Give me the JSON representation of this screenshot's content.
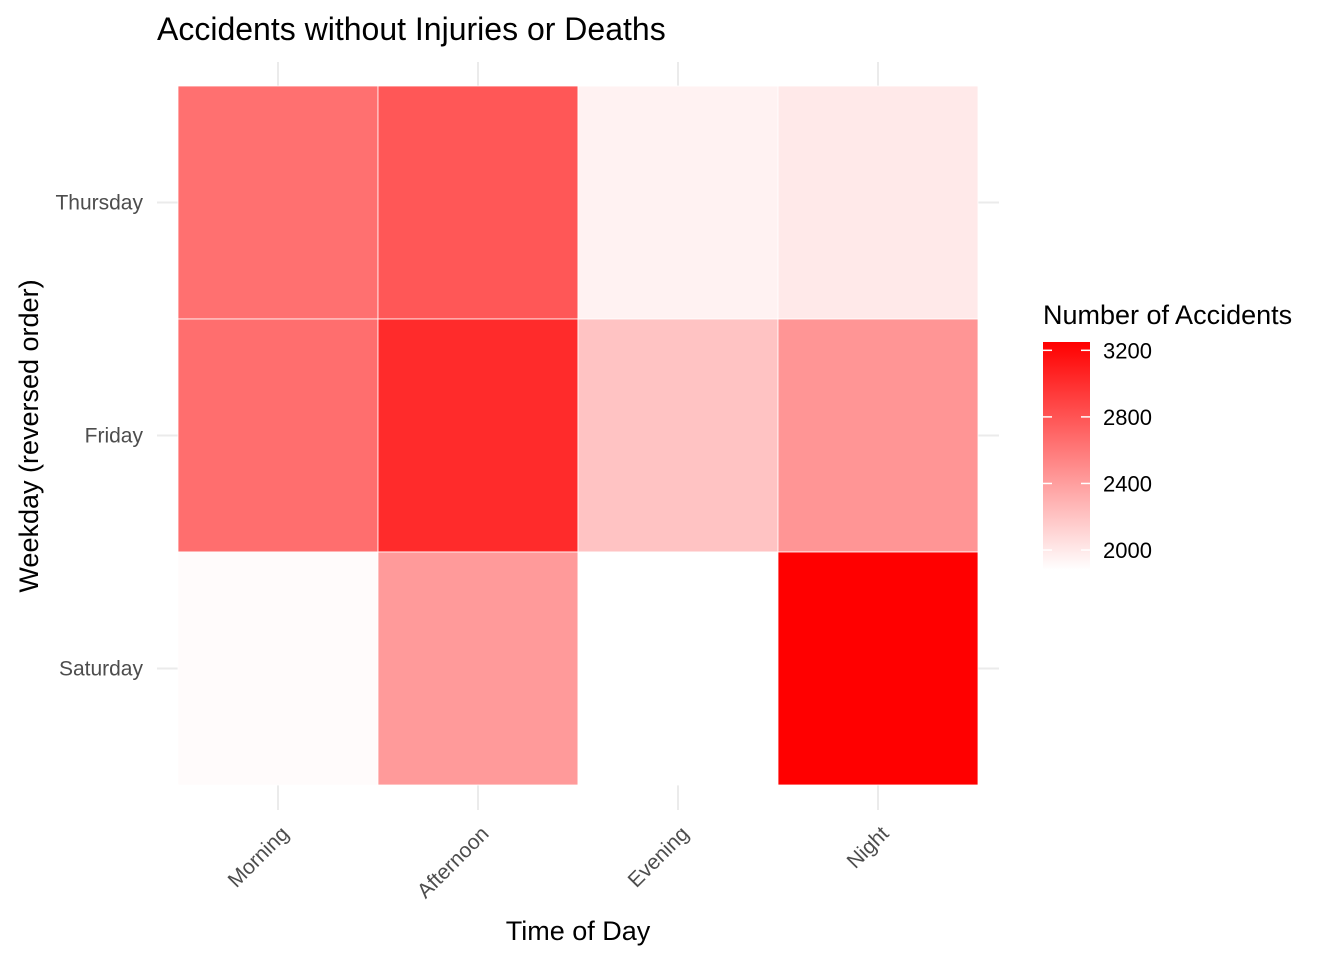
{
  "chart_data": {
    "type": "heatmap",
    "title": "Accidents without Injuries or Deaths",
    "xlabel": "Time of Day",
    "ylabel": "Weekday (reversed order)",
    "x_categories": [
      "Morning",
      "Afternoon",
      "Evening",
      "Night"
    ],
    "y_categories": [
      "Thursday",
      "Friday",
      "Saturday"
    ],
    "values": [
      [
        2650,
        2780,
        1950,
        2000
      ],
      [
        2660,
        3020,
        2200,
        2450
      ],
      [
        1900,
        2420,
        1880,
        3250
      ]
    ],
    "legend": {
      "title": "Number of Accidents",
      "ticks": [
        2000,
        2400,
        2800,
        3200
      ],
      "range": [
        1880,
        3250
      ],
      "low_color": "#ffffff",
      "high_color": "#ff0000",
      "placement": "right"
    },
    "grid": true
  }
}
